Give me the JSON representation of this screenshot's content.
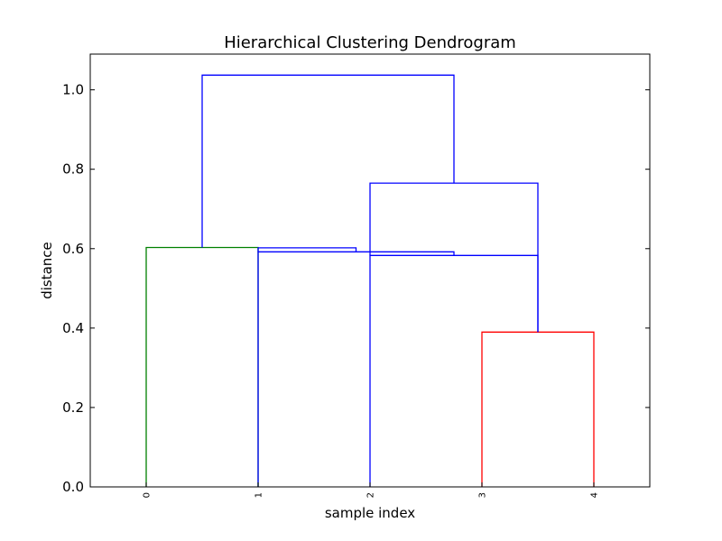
{
  "chart_data": {
    "type": "dendrogram",
    "title": "Hierarchical Clustering Dendrogram",
    "xlabel": "sample index",
    "ylabel": "distance",
    "ylim": [
      0.0,
      1.09
    ],
    "yticks": [
      0.0,
      0.2,
      0.4,
      0.6,
      0.8,
      1.0
    ],
    "ytick_labels": [
      "0.0",
      "0.2",
      "0.4",
      "0.6",
      "0.8",
      "1.0"
    ],
    "leaf_labels": [
      "0",
      "1",
      "2",
      "3",
      "4"
    ],
    "leaf_x": [
      0,
      1,
      2,
      3,
      4
    ],
    "xlim": [
      -0.5,
      4.5
    ],
    "grid": false,
    "links": [
      {
        "x": [
          0,
          0,
          1,
          1
        ],
        "y": [
          0.0,
          0.603,
          0.603,
          0.0
        ],
        "color": "#008000"
      },
      {
        "x": [
          3,
          3,
          4,
          4
        ],
        "y": [
          0.0,
          0.39,
          0.39,
          0.0
        ],
        "color": "#ff0000"
      },
      {
        "x": [
          2,
          2,
          3.5,
          3.5
        ],
        "y": [
          0.0,
          0.583,
          0.583,
          0.39
        ],
        "color": "#0000ff"
      },
      {
        "x": [
          1,
          1,
          2.75,
          2.75
        ],
        "y": [
          0.0,
          0.592,
          0.592,
          0.583
        ],
        "color": "#0000ff"
      },
      {
        "x": [
          1,
          1,
          1.875,
          1.875
        ],
        "y": [
          0.592,
          0.602,
          0.602,
          0.592
        ],
        "color": "#0000ff"
      },
      {
        "x": [
          2,
          2,
          3.5,
          3.5
        ],
        "y": [
          0.583,
          0.765,
          0.765,
          0.39
        ],
        "color": "#0000ff"
      },
      {
        "x": [
          0.5,
          0.5,
          2.75,
          2.75
        ],
        "y": [
          0.603,
          1.037,
          1.037,
          0.765
        ],
        "color": "#0000ff"
      }
    ]
  }
}
